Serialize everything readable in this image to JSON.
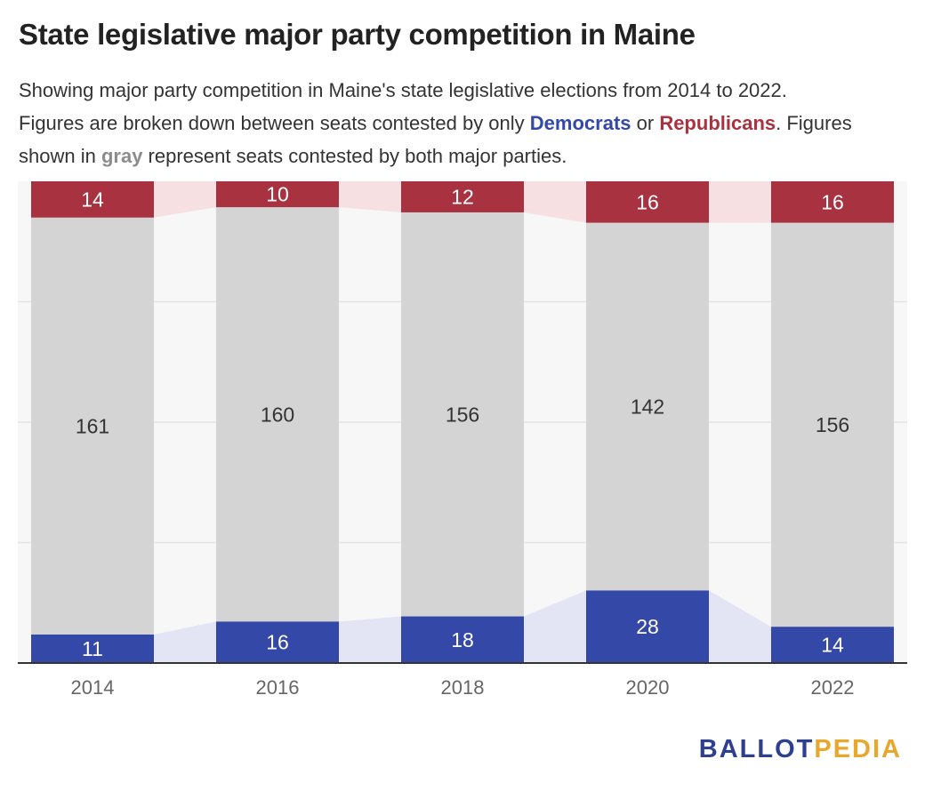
{
  "title": "State legislative major party competition in Maine",
  "subtitle": {
    "line1": "Showing major party competition in Maine's state legislative elections from 2014 to 2022.",
    "line2_pre": "Figures are broken down between seats contested by only ",
    "democrats": "Democrats",
    "or": " or ",
    "republicans": "Republicans",
    "line2_post": ". Figures",
    "line3_pre": "shown in ",
    "gray": "gray",
    "line3_post": " represent seats contested by both major parties."
  },
  "colors": {
    "democrat": "#3448a8",
    "republican": "#a8323f",
    "both": "#d4d4d4",
    "democrat_band": "#e3e5f5",
    "republican_band": "#f6e0e2",
    "plot_bg": "#f7f7f7"
  },
  "chart_data": {
    "type": "bar",
    "stacked": true,
    "normalized": true,
    "categories": [
      "2014",
      "2016",
      "2018",
      "2020",
      "2022"
    ],
    "series": [
      {
        "name": "Democrats only",
        "values": [
          11,
          16,
          18,
          28,
          14
        ]
      },
      {
        "name": "Both major parties",
        "values": [
          161,
          160,
          156,
          142,
          156
        ]
      },
      {
        "name": "Republicans only",
        "values": [
          14,
          10,
          12,
          16,
          16
        ]
      }
    ],
    "ylim": [
      0,
      100
    ],
    "grid": true,
    "xlabel": "",
    "ylabel": ""
  },
  "logo": {
    "part1": "BALLOT",
    "part2": "PEDIA"
  }
}
